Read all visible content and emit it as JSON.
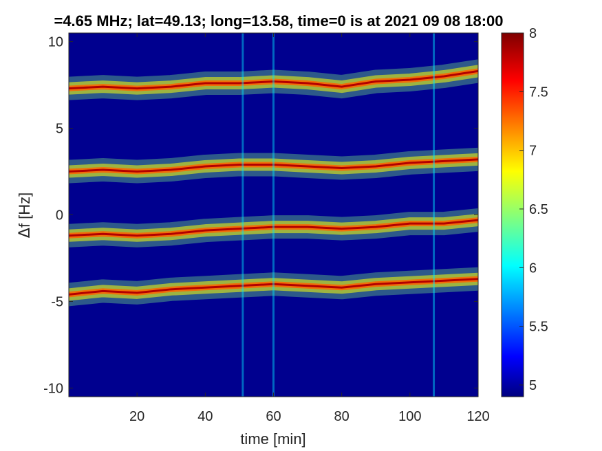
{
  "chart_data": {
    "type": "heatmap",
    "title": "=4.65 MHz;  lat=49.13; long=13.58, time=0 is at 2021 09 08 18:00",
    "xlabel": "time [min]",
    "ylabel_symbol": "Δ",
    "ylabel": "f [Hz]",
    "xlim": [
      0,
      120
    ],
    "ylim": [
      -10.5,
      10.5
    ],
    "xticks": [
      20,
      40,
      60,
      80,
      100,
      120
    ],
    "xtick_labels": [
      "20",
      "40",
      "60",
      "80",
      "100",
      "120"
    ],
    "yticks": [
      10,
      5,
      0,
      -5,
      -10
    ],
    "ytick_labels": [
      "10",
      "5",
      "0",
      "-5",
      "-10"
    ],
    "colorbar": {
      "colormap": "jet",
      "range": [
        4.9,
        8
      ],
      "ticks": [
        8,
        7.5,
        7,
        6.5,
        6,
        5.5,
        5
      ],
      "tick_labels": [
        "8",
        "7.5",
        "7",
        "6.5",
        "6",
        "5.5",
        "5"
      ]
    },
    "background_value": 5.0,
    "traces": [
      {
        "name": "",
        "points": [
          [
            0,
            7.3
          ],
          [
            10,
            7.4
          ],
          [
            20,
            7.3
          ],
          [
            30,
            7.4
          ],
          [
            40,
            7.6
          ],
          [
            50,
            7.6
          ],
          [
            60,
            7.7
          ],
          [
            70,
            7.6
          ],
          [
            80,
            7.4
          ],
          [
            90,
            7.7
          ],
          [
            100,
            7.8
          ],
          [
            110,
            8.0
          ],
          [
            120,
            8.3
          ]
        ]
      },
      {
        "name": "",
        "points": [
          [
            0,
            2.5
          ],
          [
            10,
            2.6
          ],
          [
            20,
            2.5
          ],
          [
            30,
            2.6
          ],
          [
            40,
            2.8
          ],
          [
            50,
            2.9
          ],
          [
            60,
            2.9
          ],
          [
            70,
            2.8
          ],
          [
            80,
            2.7
          ],
          [
            90,
            2.8
          ],
          [
            100,
            3.0
          ],
          [
            110,
            3.1
          ],
          [
            120,
            3.2
          ]
        ]
      },
      {
        "name": "",
        "points": [
          [
            0,
            -1.2
          ],
          [
            10,
            -1.1
          ],
          [
            20,
            -1.2
          ],
          [
            30,
            -1.1
          ],
          [
            40,
            -0.9
          ],
          [
            50,
            -0.8
          ],
          [
            60,
            -0.7
          ],
          [
            70,
            -0.7
          ],
          [
            80,
            -0.8
          ],
          [
            90,
            -0.7
          ],
          [
            100,
            -0.5
          ],
          [
            110,
            -0.5
          ],
          [
            120,
            -0.3
          ]
        ]
      },
      {
        "name": "",
        "points": [
          [
            0,
            -4.6
          ],
          [
            10,
            -4.4
          ],
          [
            20,
            -4.5
          ],
          [
            30,
            -4.3
          ],
          [
            40,
            -4.2
          ],
          [
            50,
            -4.1
          ],
          [
            60,
            -4.0
          ],
          [
            70,
            -4.1
          ],
          [
            80,
            -4.2
          ],
          [
            90,
            -4.0
          ],
          [
            100,
            -3.9
          ],
          [
            110,
            -3.8
          ],
          [
            120,
            -3.7
          ]
        ]
      }
    ],
    "vertical_streaks_min": [
      51,
      60,
      107
    ],
    "diffuse_activity_start_min": 85
  }
}
